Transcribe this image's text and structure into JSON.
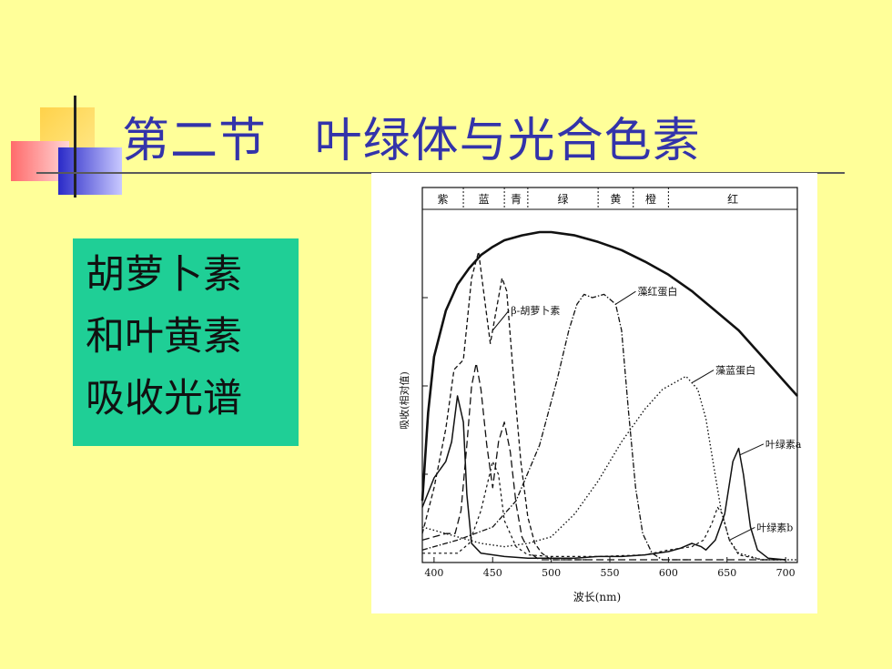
{
  "slide": {
    "title": "第二节   叶绿体与光合色素",
    "text_box": {
      "lines": [
        "胡萝卜素",
        "和叶黄素",
        "吸收光谱"
      ]
    },
    "colors": {
      "background": "#FFFF99",
      "title": "#3333AA",
      "text_box": "#1FCF96"
    }
  },
  "chart_data": {
    "type": "line",
    "xlabel": "波长(nm)",
    "ylabel": "吸收(相对值)",
    "xlim": [
      390,
      710
    ],
    "x_ticks": [
      400,
      450,
      500,
      550,
      600,
      650,
      700
    ],
    "color_bands": [
      {
        "label": "紫",
        "x_start": 390,
        "x_end": 425
      },
      {
        "label": "蓝",
        "x_start": 425,
        "x_end": 460
      },
      {
        "label": "青",
        "x_start": 460,
        "x_end": 480
      },
      {
        "label": "绿",
        "x_start": 480,
        "x_end": 540
      },
      {
        "label": "黄",
        "x_start": 540,
        "x_end": 570
      },
      {
        "label": "橙",
        "x_start": 570,
        "x_end": 600
      },
      {
        "label": "红",
        "x_start": 600,
        "x_end": 710
      }
    ],
    "series": [
      {
        "style": "solid-thick",
        "points": [
          [
            390,
            0.18
          ],
          [
            395,
            0.45
          ],
          [
            400,
            0.62
          ],
          [
            410,
            0.76
          ],
          [
            420,
            0.84
          ],
          [
            430,
            0.89
          ],
          [
            440,
            0.93
          ],
          [
            450,
            0.955
          ],
          [
            460,
            0.975
          ],
          [
            475,
            0.99
          ],
          [
            490,
            1.0
          ],
          [
            500,
            1.0
          ],
          [
            520,
            0.99
          ],
          [
            540,
            0.97
          ],
          [
            560,
            0.945
          ],
          [
            580,
            0.91
          ],
          [
            600,
            0.87
          ],
          [
            620,
            0.82
          ],
          [
            640,
            0.76
          ],
          [
            660,
            0.7
          ],
          [
            680,
            0.62
          ],
          [
            700,
            0.54
          ],
          [
            710,
            0.5
          ]
        ]
      },
      {
        "name": "β-胡萝卜素",
        "style": "dashed",
        "points": [
          [
            390,
            0.08
          ],
          [
            400,
            0.22
          ],
          [
            410,
            0.4
          ],
          [
            417,
            0.58
          ],
          [
            425,
            0.61
          ],
          [
            432,
            0.86
          ],
          [
            438,
            0.94
          ],
          [
            443,
            0.8
          ],
          [
            448,
            0.66
          ],
          [
            452,
            0.74
          ],
          [
            458,
            0.86
          ],
          [
            462,
            0.82
          ],
          [
            468,
            0.55
          ],
          [
            474,
            0.3
          ],
          [
            480,
            0.13
          ],
          [
            486,
            0.05
          ],
          [
            492,
            0.02
          ],
          [
            500,
            0.0
          ],
          [
            530,
            0.0
          ]
        ]
      },
      {
        "style": "long-dashed",
        "points": [
          [
            390,
            0.06
          ],
          [
            400,
            0.07
          ],
          [
            410,
            0.08
          ],
          [
            418,
            0.08
          ],
          [
            423,
            0.15
          ],
          [
            428,
            0.35
          ],
          [
            432,
            0.53
          ],
          [
            436,
            0.6
          ],
          [
            440,
            0.52
          ],
          [
            445,
            0.35
          ],
          [
            450,
            0.22
          ],
          [
            455,
            0.36
          ],
          [
            460,
            0.42
          ],
          [
            465,
            0.33
          ],
          [
            470,
            0.17
          ],
          [
            475,
            0.07
          ],
          [
            482,
            0.02
          ],
          [
            490,
            0.0
          ],
          [
            700,
            0.0
          ]
        ]
      },
      {
        "name": "藻红蛋白",
        "style": "dash-dot",
        "points": [
          [
            390,
            0.03
          ],
          [
            420,
            0.06
          ],
          [
            450,
            0.1
          ],
          [
            470,
            0.18
          ],
          [
            490,
            0.35
          ],
          [
            505,
            0.55
          ],
          [
            515,
            0.7
          ],
          [
            522,
            0.78
          ],
          [
            528,
            0.81
          ],
          [
            535,
            0.8
          ],
          [
            545,
            0.81
          ],
          [
            555,
            0.78
          ],
          [
            560,
            0.7
          ],
          [
            566,
            0.45
          ],
          [
            572,
            0.22
          ],
          [
            578,
            0.08
          ],
          [
            586,
            0.02
          ],
          [
            595,
            0.0
          ],
          [
            620,
            0.0
          ]
        ]
      },
      {
        "name": "藻蓝蛋白",
        "style": "dotted",
        "points": [
          [
            390,
            0.1
          ],
          [
            400,
            0.09
          ],
          [
            420,
            0.07
          ],
          [
            440,
            0.05
          ],
          [
            460,
            0.04
          ],
          [
            480,
            0.05
          ],
          [
            500,
            0.07
          ],
          [
            520,
            0.14
          ],
          [
            540,
            0.24
          ],
          [
            560,
            0.36
          ],
          [
            580,
            0.46
          ],
          [
            595,
            0.52
          ],
          [
            605,
            0.54
          ],
          [
            615,
            0.56
          ],
          [
            625,
            0.52
          ],
          [
            632,
            0.43
          ],
          [
            638,
            0.3
          ],
          [
            645,
            0.15
          ],
          [
            652,
            0.06
          ],
          [
            660,
            0.02
          ],
          [
            680,
            0.0
          ],
          [
            710,
            0.0
          ]
        ]
      },
      {
        "name": "叶绿素a",
        "style": "solid",
        "points": [
          [
            390,
            0.16
          ],
          [
            400,
            0.25
          ],
          [
            410,
            0.3
          ],
          [
            415,
            0.36
          ],
          [
            420,
            0.5
          ],
          [
            425,
            0.42
          ],
          [
            428,
            0.2
          ],
          [
            432,
            0.05
          ],
          [
            440,
            0.02
          ],
          [
            460,
            0.01
          ],
          [
            480,
            0.005
          ],
          [
            500,
            0.005
          ],
          [
            520,
            0.005
          ],
          [
            540,
            0.01
          ],
          [
            560,
            0.01
          ],
          [
            580,
            0.015
          ],
          [
            600,
            0.025
          ],
          [
            610,
            0.035
          ],
          [
            620,
            0.05
          ],
          [
            628,
            0.04
          ],
          [
            632,
            0.03
          ],
          [
            640,
            0.06
          ],
          [
            648,
            0.14
          ],
          [
            655,
            0.3
          ],
          [
            660,
            0.34
          ],
          [
            664,
            0.26
          ],
          [
            670,
            0.1
          ],
          [
            676,
            0.03
          ],
          [
            685,
            0.005
          ],
          [
            700,
            0.0
          ]
        ]
      },
      {
        "name": "叶绿素b",
        "style": "dashed-fine",
        "points": [
          [
            390,
            0.02
          ],
          [
            420,
            0.02
          ],
          [
            430,
            0.05
          ],
          [
            440,
            0.15
          ],
          [
            450,
            0.3
          ],
          [
            455,
            0.26
          ],
          [
            460,
            0.12
          ],
          [
            470,
            0.04
          ],
          [
            480,
            0.015
          ],
          [
            500,
            0.01
          ],
          [
            540,
            0.01
          ],
          [
            580,
            0.015
          ],
          [
            600,
            0.03
          ],
          [
            620,
            0.04
          ],
          [
            630,
            0.06
          ],
          [
            637,
            0.11
          ],
          [
            642,
            0.16
          ],
          [
            646,
            0.14
          ],
          [
            652,
            0.06
          ],
          [
            660,
            0.015
          ],
          [
            680,
            0.0
          ],
          [
            700,
            0.0
          ]
        ]
      }
    ]
  }
}
